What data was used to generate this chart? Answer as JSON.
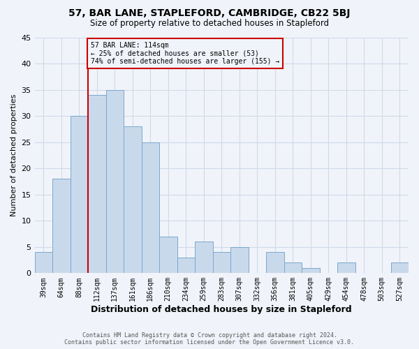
{
  "title": "57, BAR LANE, STAPLEFORD, CAMBRIDGE, CB22 5BJ",
  "subtitle": "Size of property relative to detached houses in Stapleford",
  "xlabel": "Distribution of detached houses by size in Stapleford",
  "ylabel": "Number of detached properties",
  "footer_line1": "Contains HM Land Registry data © Crown copyright and database right 2024.",
  "footer_line2": "Contains public sector information licensed under the Open Government Licence v3.0.",
  "bin_labels": [
    "39sqm",
    "64sqm",
    "88sqm",
    "112sqm",
    "137sqm",
    "161sqm",
    "186sqm",
    "210sqm",
    "234sqm",
    "259sqm",
    "283sqm",
    "307sqm",
    "332sqm",
    "356sqm",
    "381sqm",
    "405sqm",
    "429sqm",
    "454sqm",
    "478sqm",
    "503sqm",
    "527sqm"
  ],
  "bar_heights": [
    4,
    18,
    30,
    34,
    35,
    28,
    25,
    7,
    3,
    6,
    4,
    5,
    0,
    4,
    2,
    1,
    0,
    2,
    0,
    0,
    2
  ],
  "bar_color": "#c9d9ec",
  "bar_edge_color": "#7aa8cc",
  "vline_x_index": 3,
  "vline_color": "#cc0000",
  "annotation_text": "57 BAR LANE: 114sqm\n← 25% of detached houses are smaller (53)\n74% of semi-detached houses are larger (155) →",
  "annotation_box_color": "#cc0000",
  "annotation_bg_color": "#f0f4fa",
  "ylim": [
    0,
    45
  ],
  "yticks": [
    0,
    5,
    10,
    15,
    20,
    25,
    30,
    35,
    40,
    45
  ],
  "grid_color": "#d0d8e8",
  "background_color": "#f0f4fa",
  "title_fontsize": 10,
  "subtitle_fontsize": 8.5,
  "xlabel_fontsize": 9,
  "ylabel_fontsize": 8,
  "tick_fontsize": 7,
  "footer_fontsize": 6
}
